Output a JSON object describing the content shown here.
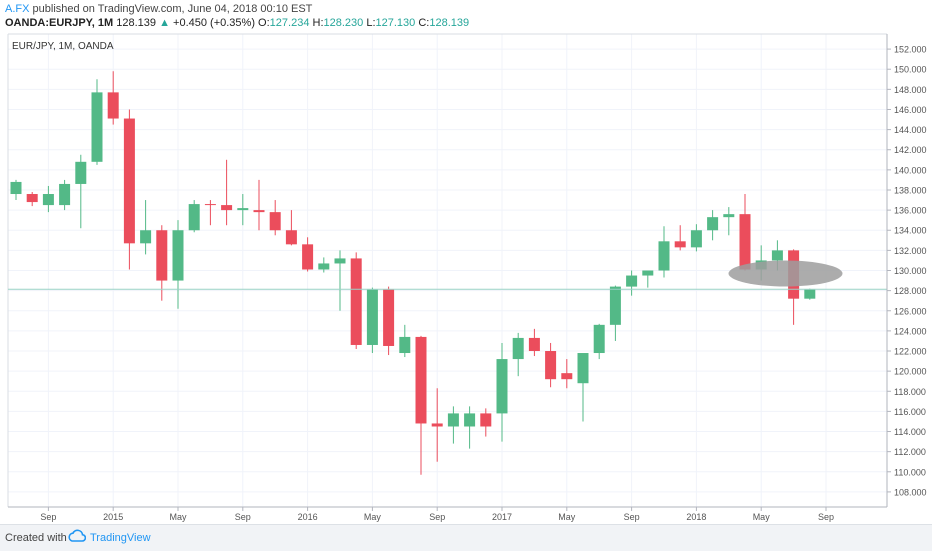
{
  "header": {
    "author": "A.FX",
    "published": "published on TradingView.com, June 04, 2018 00:10 EST",
    "symbol": "OANDA:EURJPY, 1M",
    "last": "128.139",
    "change": "+0.450 (+0.35%)",
    "o_label": "O:",
    "o_value": "127.234",
    "h_label": "H:",
    "h_value": "128.230",
    "l_label": "L:",
    "l_value": "127.130",
    "c_label": "C:",
    "c_value": "128.139"
  },
  "chart_data": {
    "type": "candlestick",
    "title": "EUR/JPY, 1M, OANDA",
    "ylim": [
      106.5,
      153.5
    ],
    "y_ticks": [
      "108.000",
      "110.000",
      "112.000",
      "114.000",
      "116.000",
      "118.000",
      "120.000",
      "122.000",
      "124.000",
      "126.000",
      "128.000",
      "130.000",
      "132.000",
      "134.000",
      "136.000",
      "138.000",
      "140.000",
      "142.000",
      "144.000",
      "146.000",
      "148.000",
      "150.000",
      "152.000"
    ],
    "x_labels": [
      {
        "label": "Sep",
        "index": 2
      },
      {
        "label": "2015",
        "index": 6
      },
      {
        "label": "May",
        "index": 10
      },
      {
        "label": "Sep",
        "index": 14
      },
      {
        "label": "2016",
        "index": 18
      },
      {
        "label": "May",
        "index": 22
      },
      {
        "label": "Sep",
        "index": 26
      },
      {
        "label": "2017",
        "index": 30
      },
      {
        "label": "May",
        "index": 34
      },
      {
        "label": "Sep",
        "index": 38
      },
      {
        "label": "2018",
        "index": 42
      },
      {
        "label": "May",
        "index": 46
      },
      {
        "label": "Sep",
        "index": 50
      }
    ],
    "candles": [
      {
        "o": 137.6,
        "h": 139.0,
        "l": 137.0,
        "c": 138.8
      },
      {
        "o": 137.6,
        "h": 137.8,
        "l": 136.4,
        "c": 136.8
      },
      {
        "o": 136.5,
        "h": 138.4,
        "l": 135.8,
        "c": 137.6
      },
      {
        "o": 136.5,
        "h": 139.0,
        "l": 136.0,
        "c": 138.6
      },
      {
        "o": 138.6,
        "h": 141.5,
        "l": 134.2,
        "c": 140.8
      },
      {
        "o": 140.8,
        "h": 149.0,
        "l": 140.5,
        "c": 147.7
      },
      {
        "o": 147.7,
        "h": 149.8,
        "l": 144.5,
        "c": 145.1
      },
      {
        "o": 145.1,
        "h": 146.0,
        "l": 130.1,
        "c": 132.7
      },
      {
        "o": 132.7,
        "h": 137.0,
        "l": 131.6,
        "c": 134.0
      },
      {
        "o": 134.0,
        "h": 134.5,
        "l": 127.0,
        "c": 129.0
      },
      {
        "o": 129.0,
        "h": 135.0,
        "l": 126.2,
        "c": 134.0
      },
      {
        "o": 134.0,
        "h": 137.0,
        "l": 133.8,
        "c": 136.6
      },
      {
        "o": 136.6,
        "h": 137.0,
        "l": 134.5,
        "c": 136.5
      },
      {
        "o": 136.5,
        "h": 141.0,
        "l": 134.5,
        "c": 136.0
      },
      {
        "o": 136.0,
        "h": 137.6,
        "l": 134.5,
        "c": 136.2
      },
      {
        "o": 136.0,
        "h": 139.0,
        "l": 134.0,
        "c": 135.8
      },
      {
        "o": 135.8,
        "h": 137.0,
        "l": 133.5,
        "c": 134.0
      },
      {
        "o": 134.0,
        "h": 136.0,
        "l": 132.5,
        "c": 132.6
      },
      {
        "o": 132.6,
        "h": 133.3,
        "l": 129.9,
        "c": 130.1
      },
      {
        "o": 130.1,
        "h": 131.3,
        "l": 129.8,
        "c": 130.7
      },
      {
        "o": 130.7,
        "h": 132.0,
        "l": 126.0,
        "c": 131.2
      },
      {
        "o": 131.2,
        "h": 131.8,
        "l": 122.2,
        "c": 122.6
      },
      {
        "o": 122.6,
        "h": 128.3,
        "l": 121.8,
        "c": 128.1
      },
      {
        "o": 128.1,
        "h": 128.4,
        "l": 121.6,
        "c": 122.5
      },
      {
        "o": 121.8,
        "h": 124.6,
        "l": 121.4,
        "c": 123.4
      },
      {
        "o": 123.4,
        "h": 123.5,
        "l": 109.7,
        "c": 114.8
      },
      {
        "o": 114.8,
        "h": 118.3,
        "l": 111.0,
        "c": 114.5
      },
      {
        "o": 114.5,
        "h": 116.5,
        "l": 112.8,
        "c": 115.8
      },
      {
        "o": 114.5,
        "h": 116.5,
        "l": 112.3,
        "c": 115.8
      },
      {
        "o": 115.8,
        "h": 116.3,
        "l": 113.5,
        "c": 114.5
      },
      {
        "o": 115.8,
        "h": 122.8,
        "l": 113.0,
        "c": 121.2
      },
      {
        "o": 121.2,
        "h": 123.8,
        "l": 119.5,
        "c": 123.3
      },
      {
        "o": 123.3,
        "h": 124.2,
        "l": 121.5,
        "c": 122.0
      },
      {
        "o": 122.0,
        "h": 122.8,
        "l": 118.4,
        "c": 119.2
      },
      {
        "o": 119.8,
        "h": 121.2,
        "l": 118.3,
        "c": 119.2
      },
      {
        "o": 118.8,
        "h": 121.5,
        "l": 115.0,
        "c": 121.8
      },
      {
        "o": 121.8,
        "h": 124.7,
        "l": 121.2,
        "c": 124.6
      },
      {
        "o": 124.6,
        "h": 128.5,
        "l": 123.0,
        "c": 128.4
      },
      {
        "o": 128.4,
        "h": 130.0,
        "l": 127.5,
        "c": 129.5
      },
      {
        "o": 129.5,
        "h": 130.0,
        "l": 128.3,
        "c": 130.0
      },
      {
        "o": 130.0,
        "h": 134.4,
        "l": 129.3,
        "c": 132.9
      },
      {
        "o": 132.9,
        "h": 134.5,
        "l": 132.0,
        "c": 132.3
      },
      {
        "o": 132.3,
        "h": 134.6,
        "l": 131.9,
        "c": 134.0
      },
      {
        "o": 134.0,
        "h": 136.0,
        "l": 133.0,
        "c": 135.3
      },
      {
        "o": 135.3,
        "h": 136.3,
        "l": 133.5,
        "c": 135.6
      },
      {
        "o": 135.6,
        "h": 137.6,
        "l": 130.0,
        "c": 130.1
      },
      {
        "o": 130.1,
        "h": 132.5,
        "l": 129.0,
        "c": 131.0
      },
      {
        "o": 131.0,
        "h": 133.0,
        "l": 130.0,
        "c": 132.0
      },
      {
        "o": 132.0,
        "h": 132.1,
        "l": 124.6,
        "c": 127.2
      },
      {
        "o": 127.2,
        "h": 128.2,
        "l": 127.1,
        "c": 128.1
      }
    ],
    "current_price": 128.139,
    "highlight_ellipse": {
      "center_index": 47.5,
      "center_value": 129.7
    },
    "colors": {
      "up": "#53b987",
      "down": "#eb4d5c",
      "grid": "#f0f3fa",
      "price_line": "#99d2c6",
      "ellipse": "#9e9e9e"
    }
  },
  "footer": {
    "created_with": "Created with",
    "brand": "TradingView"
  }
}
